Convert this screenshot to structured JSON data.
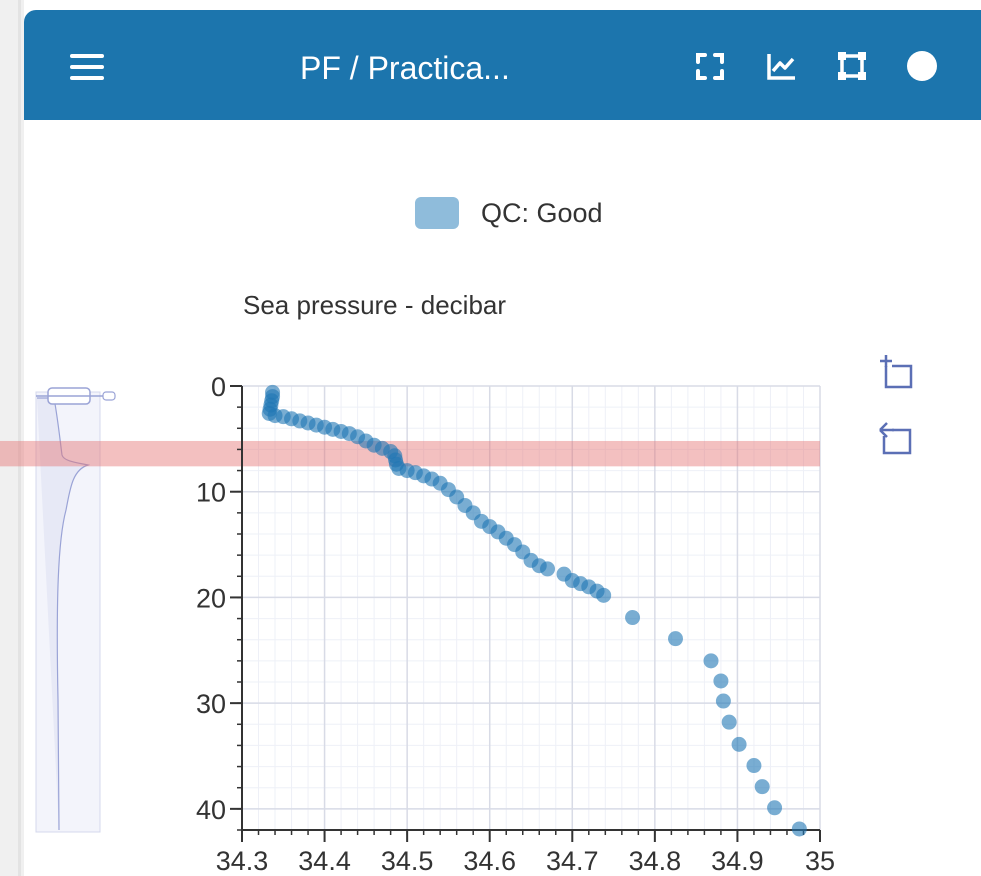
{
  "header": {
    "title": "PF / Practica...",
    "icons": [
      "menu-icon",
      "fullscreen-icon",
      "line-chart-icon",
      "select-box-icon",
      "status-dot-icon"
    ]
  },
  "colors": {
    "header_bg": "#1c75ad",
    "point": "#1f77b4",
    "highlight": "#e57373"
  },
  "legend": {
    "label": "QC: Good"
  },
  "chart_data": {
    "type": "scatter",
    "title": "",
    "ylabel": "Sea pressure - decibar",
    "xlabel": "",
    "xlim": [
      34.3,
      35
    ],
    "ylim": [
      0,
      42
    ],
    "y_inverted": true,
    "x_ticks": [
      "34.3",
      "34.4",
      "34.5",
      "34.6",
      "34.7",
      "34.8",
      "34.9",
      "35"
    ],
    "y_ticks": [
      "0",
      "10",
      "20",
      "30",
      "40"
    ],
    "highlight_band": [
      5.2,
      7.6
    ],
    "grid": true,
    "legend_position": "top-center",
    "series": [
      {
        "name": "QC: Good",
        "points": [
          [
            34.337,
            0.6
          ],
          [
            34.337,
            1.0
          ],
          [
            34.336,
            1.4
          ],
          [
            34.335,
            1.8
          ],
          [
            34.334,
            2.2
          ],
          [
            34.333,
            2.6
          ],
          [
            34.34,
            2.8
          ],
          [
            34.35,
            2.9
          ],
          [
            34.36,
            3.1
          ],
          [
            34.37,
            3.3
          ],
          [
            34.38,
            3.5
          ],
          [
            34.39,
            3.7
          ],
          [
            34.4,
            3.9
          ],
          [
            34.41,
            4.1
          ],
          [
            34.42,
            4.3
          ],
          [
            34.43,
            4.5
          ],
          [
            34.44,
            4.8
          ],
          [
            34.45,
            5.2
          ],
          [
            34.46,
            5.6
          ],
          [
            34.47,
            5.9
          ],
          [
            34.48,
            6.2
          ],
          [
            34.485,
            6.6
          ],
          [
            34.486,
            7.0
          ],
          [
            34.487,
            7.4
          ],
          [
            34.49,
            7.8
          ],
          [
            34.5,
            8.0
          ],
          [
            34.51,
            8.2
          ],
          [
            34.52,
            8.5
          ],
          [
            34.53,
            8.8
          ],
          [
            34.54,
            9.2
          ],
          [
            34.55,
            9.8
          ],
          [
            34.56,
            10.5
          ],
          [
            34.57,
            11.3
          ],
          [
            34.58,
            12.0
          ],
          [
            34.59,
            12.8
          ],
          [
            34.6,
            13.3
          ],
          [
            34.61,
            13.8
          ],
          [
            34.62,
            14.4
          ],
          [
            34.63,
            15.0
          ],
          [
            34.64,
            15.7
          ],
          [
            34.65,
            16.5
          ],
          [
            34.66,
            17.0
          ],
          [
            34.67,
            17.3
          ],
          [
            34.69,
            17.8
          ],
          [
            34.7,
            18.4
          ],
          [
            34.71,
            18.7
          ],
          [
            34.72,
            19.0
          ],
          [
            34.73,
            19.4
          ],
          [
            34.738,
            19.8
          ],
          [
            34.773,
            21.9
          ],
          [
            34.825,
            23.9
          ],
          [
            34.868,
            26.0
          ],
          [
            34.88,
            27.9
          ],
          [
            34.883,
            29.8
          ],
          [
            34.89,
            31.8
          ],
          [
            34.902,
            33.9
          ],
          [
            34.92,
            35.9
          ],
          [
            34.93,
            37.9
          ],
          [
            34.945,
            39.9
          ],
          [
            34.975,
            41.9
          ]
        ]
      }
    ]
  },
  "overview": {
    "label": "overview-profile"
  }
}
